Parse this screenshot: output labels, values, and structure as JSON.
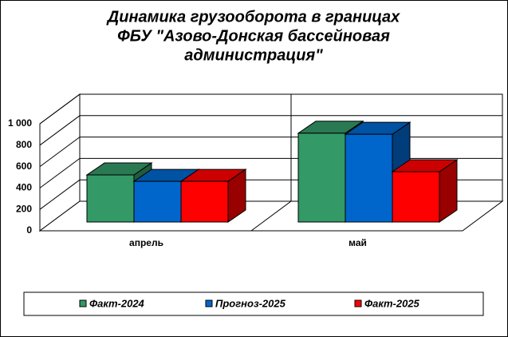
{
  "chart_data": {
    "type": "bar",
    "title": [
      "Динамика грузооборота в границах",
      "ФБУ \"Азово-Донская бассейновая",
      "администрация\""
    ],
    "categories": [
      "апрель",
      "май"
    ],
    "series": [
      {
        "name": "Факт-2024",
        "color": "#339966",
        "values": [
          440,
          830
        ]
      },
      {
        "name": "Прогноз-2025",
        "color": "#0066cc",
        "values": [
          380,
          820
        ]
      },
      {
        "name": "Факт-2025",
        "color": "#ff0000",
        "values": [
          380,
          470
        ]
      }
    ],
    "ylim": [
      0,
      1000
    ],
    "yticks": [
      0,
      200,
      400,
      600,
      800,
      {
        "value": 1000,
        "label": "1 000"
      }
    ],
    "grid": true,
    "legend": "bottom"
  }
}
